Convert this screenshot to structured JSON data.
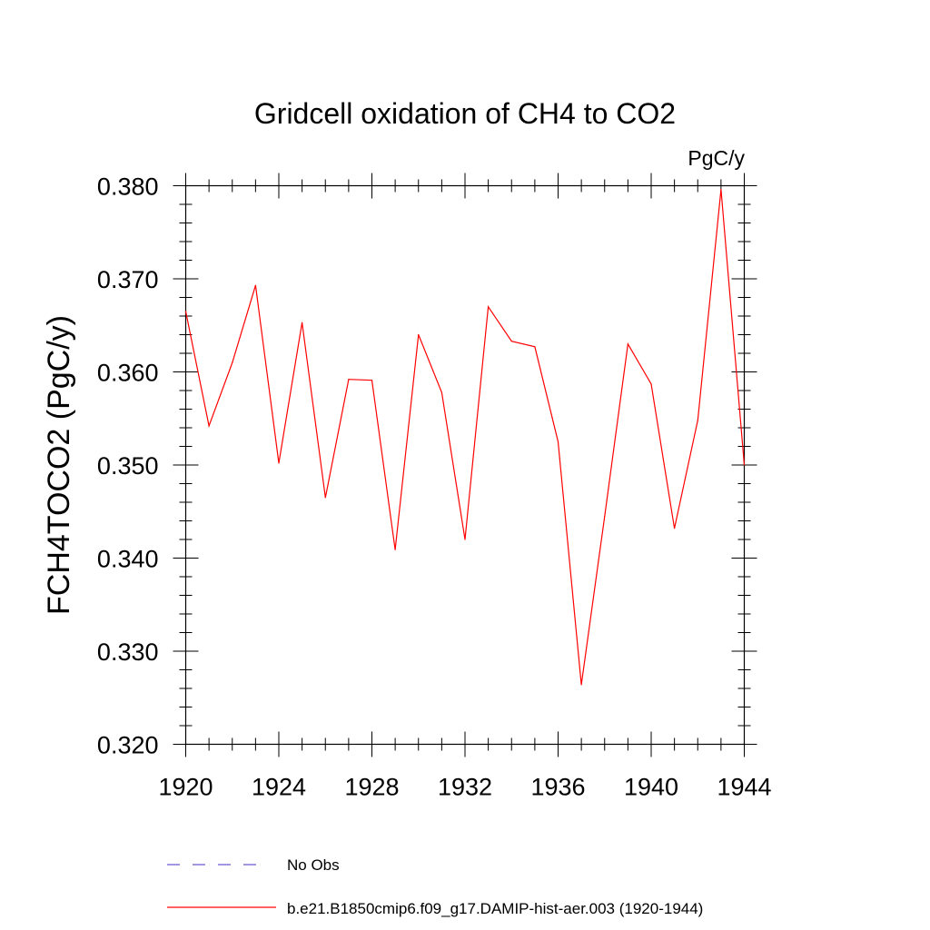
{
  "chart_data": {
    "type": "line",
    "title": "Gridcell oxidation of CH4 to CO2",
    "units": "PgC/y",
    "ylabel": "FCH4TOCO2  (PgC/y)",
    "xlabel": "",
    "xlim": [
      1920,
      1944
    ],
    "ylim": [
      0.32,
      0.38
    ],
    "x_ticks": [
      1920,
      1924,
      1928,
      1932,
      1936,
      1940,
      1944
    ],
    "x_tick_labels": [
      "1920",
      "1924",
      "1928",
      "1932",
      "1936",
      "1940",
      "1944"
    ],
    "y_ticks": [
      0.32,
      0.33,
      0.34,
      0.35,
      0.36,
      0.37,
      0.38
    ],
    "y_tick_labels": [
      "0.320",
      "0.330",
      "0.340",
      "0.350",
      "0.360",
      "0.370",
      "0.380"
    ],
    "series": [
      {
        "name": "b.e21.B1850cmip6.f09_g17.DAMIP-hist-aer.003 (1920-1944)",
        "color": "#ff0000",
        "x": [
          1920,
          1921,
          1922,
          1923,
          1924,
          1925,
          1926,
          1927,
          1928,
          1929,
          1930,
          1931,
          1932,
          1933,
          1934,
          1935,
          1936,
          1937,
          1938,
          1939,
          1940,
          1941,
          1942,
          1943,
          1944
        ],
        "values": [
          0.3665,
          0.3542,
          0.361,
          0.3693,
          0.3502,
          0.3653,
          0.3465,
          0.3592,
          0.3591,
          0.3409,
          0.364,
          0.3578,
          0.342,
          0.367,
          0.3633,
          0.3627,
          0.3525,
          0.3264,
          0.3445,
          0.363,
          0.3587,
          0.3432,
          0.3548,
          0.3796,
          0.35
        ]
      }
    ],
    "legend": [
      {
        "label": "No Obs",
        "color": "#6a5acd",
        "style": "dashed"
      },
      {
        "label": "b.e21.B1850cmip6.f09_g17.DAMIP-hist-aer.003 (1920-1944)",
        "color": "#ff0000",
        "style": "solid"
      }
    ],
    "legend_position": "bottom"
  }
}
